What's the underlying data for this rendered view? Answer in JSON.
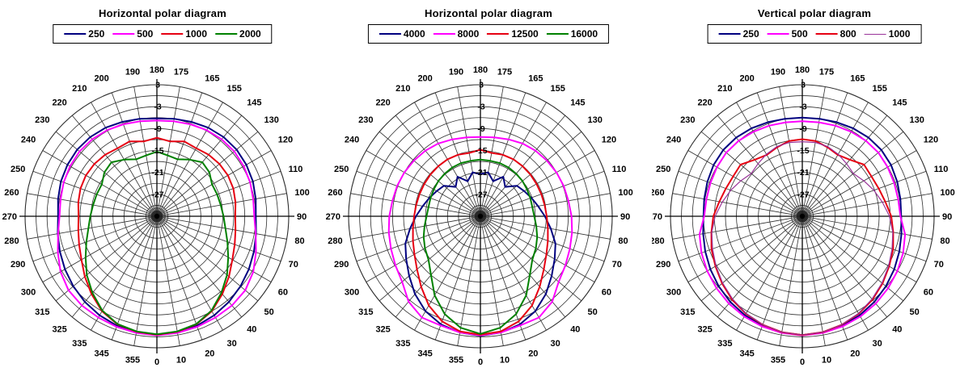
{
  "page": {
    "background": "#ffffff"
  },
  "grid": {
    "spoke_step_deg": 10,
    "ring_step_db": 3,
    "grid_color": "#2e2e2e",
    "axis_color": "#000000"
  },
  "chart_data": [
    {
      "type": "line",
      "projection": "polar",
      "title": "Horizontal polar diagram",
      "angle_unit": "degrees",
      "angle_zero_position": "bottom",
      "angle_direction": "clockwise",
      "sample_step_deg": 10,
      "angle_tick_labels": [
        "0",
        "10",
        "20",
        "30",
        "40",
        "50",
        "60",
        "70",
        "80",
        "90",
        "100",
        "110",
        "120",
        "130",
        "145",
        "155",
        "165",
        "175",
        "180",
        "190",
        "200",
        "210",
        "220",
        "230",
        "240",
        "250",
        "260",
        "270",
        "280",
        "290",
        "300",
        "315",
        "325",
        "335",
        "345",
        "355"
      ],
      "radial_axis": {
        "unit": "dB",
        "outer_value": 3,
        "center_value": -33,
        "ring_step": 3,
        "tick_labels": [
          "3",
          "-3",
          "-9",
          "-15",
          "-21",
          "-27"
        ],
        "tick_values": [
          3,
          -3,
          -9,
          -15,
          -21,
          -27
        ]
      },
      "series": [
        {
          "name": "250",
          "color": "#00007F",
          "line_width": 2,
          "values": [
            -0.5,
            -0.7,
            -1.1,
            -1.7,
            -2.4,
            -3.2,
            -4.0,
            -4.8,
            -5.5,
            -6.0,
            -5.6,
            -5.1,
            -4.8,
            -4.6,
            -4.7,
            -5.0,
            -5.5,
            -5.9,
            -6.2,
            -5.9,
            -5.5,
            -5.0,
            -4.7,
            -4.6,
            -4.8,
            -5.1,
            -5.6,
            -6.0,
            -5.5,
            -4.8,
            -4.0,
            -3.2,
            -2.4,
            -1.7,
            -1.1,
            -0.7
          ]
        },
        {
          "name": "500",
          "color": "#FF00FF",
          "line_width": 2,
          "values": [
            -0.4,
            -0.6,
            -0.8,
            -1.0,
            -1.1,
            -1.5,
            -2.6,
            -4.2,
            -5.6,
            -6.4,
            -6.3,
            -5.9,
            -5.6,
            -5.4,
            -5.5,
            -5.8,
            -6.2,
            -6.6,
            -6.8,
            -6.6,
            -6.2,
            -5.8,
            -5.5,
            -5.4,
            -5.6,
            -5.9,
            -6.3,
            -6.4,
            -5.6,
            -4.2,
            -2.6,
            -1.5,
            -1.1,
            -1.0,
            -0.8,
            -0.6
          ]
        },
        {
          "name": "1000",
          "color": "#E60012",
          "line_width": 2,
          "values": [
            -0.6,
            -0.9,
            -1.5,
            -3.0,
            -5.2,
            -7.3,
            -9.2,
            -10.4,
            -11.2,
            -11.6,
            -11.2,
            -10.8,
            -10.6,
            -10.7,
            -11.0,
            -11.5,
            -11.2,
            -12.2,
            -11.5,
            -12.2,
            -11.2,
            -11.5,
            -11.0,
            -10.7,
            -10.6,
            -10.8,
            -11.2,
            -11.6,
            -11.2,
            -10.4,
            -9.2,
            -7.3,
            -5.2,
            -3.0,
            -1.5,
            -0.9
          ]
        },
        {
          "name": "2000",
          "color": "#008000",
          "line_width": 2,
          "values": [
            -0.7,
            -1.0,
            -1.6,
            -3.2,
            -5.6,
            -8.0,
            -10.5,
            -12.5,
            -14.0,
            -14.8,
            -15.3,
            -15.5,
            -15.6,
            -14.3,
            -13.7,
            -15.1,
            -16.4,
            -16.1,
            -15.3,
            -16.1,
            -16.4,
            -15.1,
            -13.7,
            -14.3,
            -15.6,
            -15.5,
            -15.3,
            -14.8,
            -14.0,
            -12.5,
            -10.5,
            -8.0,
            -5.6,
            -3.2,
            -1.6,
            -1.0
          ]
        }
      ]
    },
    {
      "type": "line",
      "projection": "polar",
      "title": "Horizontal polar diagram",
      "angle_unit": "degrees",
      "angle_zero_position": "bottom",
      "angle_direction": "clockwise",
      "sample_step_deg": 10,
      "angle_tick_labels": [
        "0",
        "10",
        "20",
        "30",
        "40",
        "50",
        "60",
        "70",
        "80",
        "90",
        "100",
        "110",
        "120",
        "130",
        "145",
        "155",
        "165",
        "175",
        "180",
        "190",
        "200",
        "210",
        "220",
        "230",
        "240",
        "250",
        "260",
        "270",
        "280",
        "290",
        "300",
        "315",
        "325",
        "335",
        "345",
        "355"
      ],
      "radial_axis": {
        "unit": "dB",
        "outer_value": 3,
        "center_value": -33,
        "ring_step": 3,
        "tick_labels": [
          "3",
          "-3",
          "-9",
          "-15",
          "-21",
          "-27"
        ],
        "tick_values": [
          3,
          -3,
          -9,
          -15,
          -21,
          -27
        ]
      },
      "series": [
        {
          "name": "4000",
          "color": "#00007F",
          "line_width": 2,
          "values": [
            -0.3,
            -0.7,
            -1.5,
            -3.0,
            -5.2,
            -7.6,
            -9.6,
            -11.2,
            -13.5,
            -15.4,
            -17.0,
            -18.2,
            -19.2,
            -20.0,
            -22.5,
            -20.5,
            -22.8,
            -20.8,
            -21.5,
            -20.8,
            -22.8,
            -20.5,
            -22.5,
            -20.0,
            -19.2,
            -18.2,
            -17.0,
            -15.4,
            -13.5,
            -11.2,
            -9.6,
            -7.6,
            -5.2,
            -3.0,
            -1.5,
            -0.7
          ]
        },
        {
          "name": "8000",
          "color": "#FF00FF",
          "line_width": 2,
          "values": [
            -0.4,
            -0.7,
            -1.2,
            -1.0,
            -2.5,
            -5.1,
            -6.2,
            -7.0,
            -7.6,
            -8.1,
            -8.6,
            -8.8,
            -9.0,
            -9.3,
            -9.6,
            -10.0,
            -10.6,
            -11.1,
            -11.3,
            -11.1,
            -10.6,
            -10.0,
            -9.6,
            -9.3,
            -9.0,
            -8.8,
            -8.6,
            -8.1,
            -7.6,
            -7.0,
            -6.2,
            -5.1,
            -2.5,
            -1.0,
            -1.2,
            -0.7
          ]
        },
        {
          "name": "12500",
          "color": "#E60012",
          "line_width": 2,
          "values": [
            -0.6,
            -1.0,
            -2.4,
            -4.8,
            -7.8,
            -10.4,
            -12.2,
            -13.4,
            -14.3,
            -14.9,
            -15.2,
            -15.3,
            -15.3,
            -15.2,
            -15.1,
            -15.0,
            -15.1,
            -15.4,
            -14.8,
            -15.4,
            -15.1,
            -15.0,
            -15.1,
            -15.2,
            -15.3,
            -15.3,
            -15.2,
            -14.9,
            -14.3,
            -13.4,
            -12.2,
            -10.4,
            -7.8,
            -4.8,
            -2.4,
            -1.0
          ]
        },
        {
          "name": "16000",
          "color": "#008000",
          "line_width": 2,
          "values": [
            -0.8,
            -2.0,
            -4.5,
            -8.0,
            -12.0,
            -14.5,
            -15.5,
            -16.5,
            -17.5,
            -18.3,
            -18.6,
            -18.5,
            -18.3,
            -18.0,
            -17.8,
            -17.6,
            -17.5,
            -17.6,
            -17.5,
            -17.6,
            -17.5,
            -17.6,
            -17.8,
            -18.0,
            -18.3,
            -18.5,
            -18.6,
            -18.3,
            -17.5,
            -16.5,
            -15.5,
            -14.5,
            -12.0,
            -8.0,
            -4.5,
            -2.0
          ]
        }
      ]
    },
    {
      "type": "line",
      "projection": "polar",
      "title": "Vertical polar diagram",
      "angle_unit": "degrees",
      "angle_zero_position": "bottom",
      "angle_direction": "clockwise",
      "sample_step_deg": 10,
      "angle_tick_labels": [
        "0",
        "10",
        "20",
        "30",
        "40",
        "50",
        "60",
        "70",
        "80",
        "90",
        "100",
        "110",
        "120",
        "130",
        "145",
        "155",
        "165",
        "175",
        "180",
        "190",
        "200",
        "210",
        "220",
        "230",
        "240",
        "250",
        "260",
        "270",
        "280",
        "290",
        "300",
        "315",
        "325",
        "335",
        "345",
        "355"
      ],
      "radial_axis": {
        "unit": "dB",
        "outer_value": 3,
        "center_value": -33,
        "ring_step": 3,
        "tick_labels": [
          "3",
          "-3",
          "-9",
          "-15",
          "-21",
          "-27"
        ],
        "tick_values": [
          3,
          -3,
          -9,
          -15,
          -21,
          -27
        ]
      },
      "series": [
        {
          "name": "250",
          "color": "#00007F",
          "line_width": 2,
          "values": [
            -0.5,
            -0.7,
            -1.1,
            -1.7,
            -2.4,
            -3.2,
            -4.0,
            -4.8,
            -5.5,
            -6.0,
            -5.8,
            -5.4,
            -5.0,
            -4.8,
            -4.9,
            -5.2,
            -5.6,
            -5.9,
            -6.0,
            -5.9,
            -5.6,
            -5.2,
            -4.9,
            -4.8,
            -5.0,
            -5.4,
            -5.8,
            -6.0,
            -5.5,
            -4.8,
            -4.0,
            -3.2,
            -2.4,
            -1.7,
            -1.1,
            -0.7
          ]
        },
        {
          "name": "500",
          "color": "#FF00FF",
          "line_width": 2,
          "values": [
            -0.4,
            -0.6,
            -0.9,
            -1.3,
            -1.8,
            -2.4,
            -3.0,
            -3.7,
            -4.5,
            -6.2,
            -6.4,
            -6.3,
            -6.1,
            -5.9,
            -6.0,
            -6.3,
            -6.6,
            -6.9,
            -7.0,
            -6.9,
            -6.6,
            -6.3,
            -6.0,
            -5.9,
            -6.1,
            -6.3,
            -6.4,
            -6.2,
            -4.5,
            -3.7,
            -3.0,
            -2.4,
            -1.8,
            -1.3,
            -0.9,
            -0.6
          ]
        },
        {
          "name": "800",
          "color": "#E60012",
          "line_width": 2,
          "values": [
            -0.5,
            -0.8,
            -1.4,
            -2.2,
            -3.2,
            -4.4,
            -5.6,
            -6.6,
            -7.8,
            -8.7,
            -10.0,
            -10.8,
            -11.2,
            -11.0,
            -12.8,
            -13.6,
            -12.9,
            -12.1,
            -11.9,
            -12.1,
            -12.9,
            -13.6,
            -12.8,
            -11.0,
            -11.2,
            -10.8,
            -10.0,
            -8.7,
            -7.8,
            -6.6,
            -5.6,
            -4.4,
            -3.2,
            -2.2,
            -1.4,
            -0.8
          ]
        },
        {
          "name": "1000",
          "color": "#993399",
          "line_width": 1.2,
          "values": [
            -0.5,
            -0.8,
            -1.4,
            -2.3,
            -3.4,
            -4.6,
            -5.8,
            -6.9,
            -7.9,
            -9.2,
            -10.8,
            -12.2,
            -13.6,
            -14.8,
            -14.2,
            -13.4,
            -12.7,
            -12.5,
            -12.6,
            -12.5,
            -12.7,
            -13.4,
            -14.2,
            -14.8,
            -13.6,
            -12.2,
            -10.8,
            -9.2,
            -7.9,
            -6.9,
            -5.8,
            -4.6,
            -3.4,
            -2.3,
            -1.4,
            -0.8
          ]
        }
      ]
    }
  ]
}
